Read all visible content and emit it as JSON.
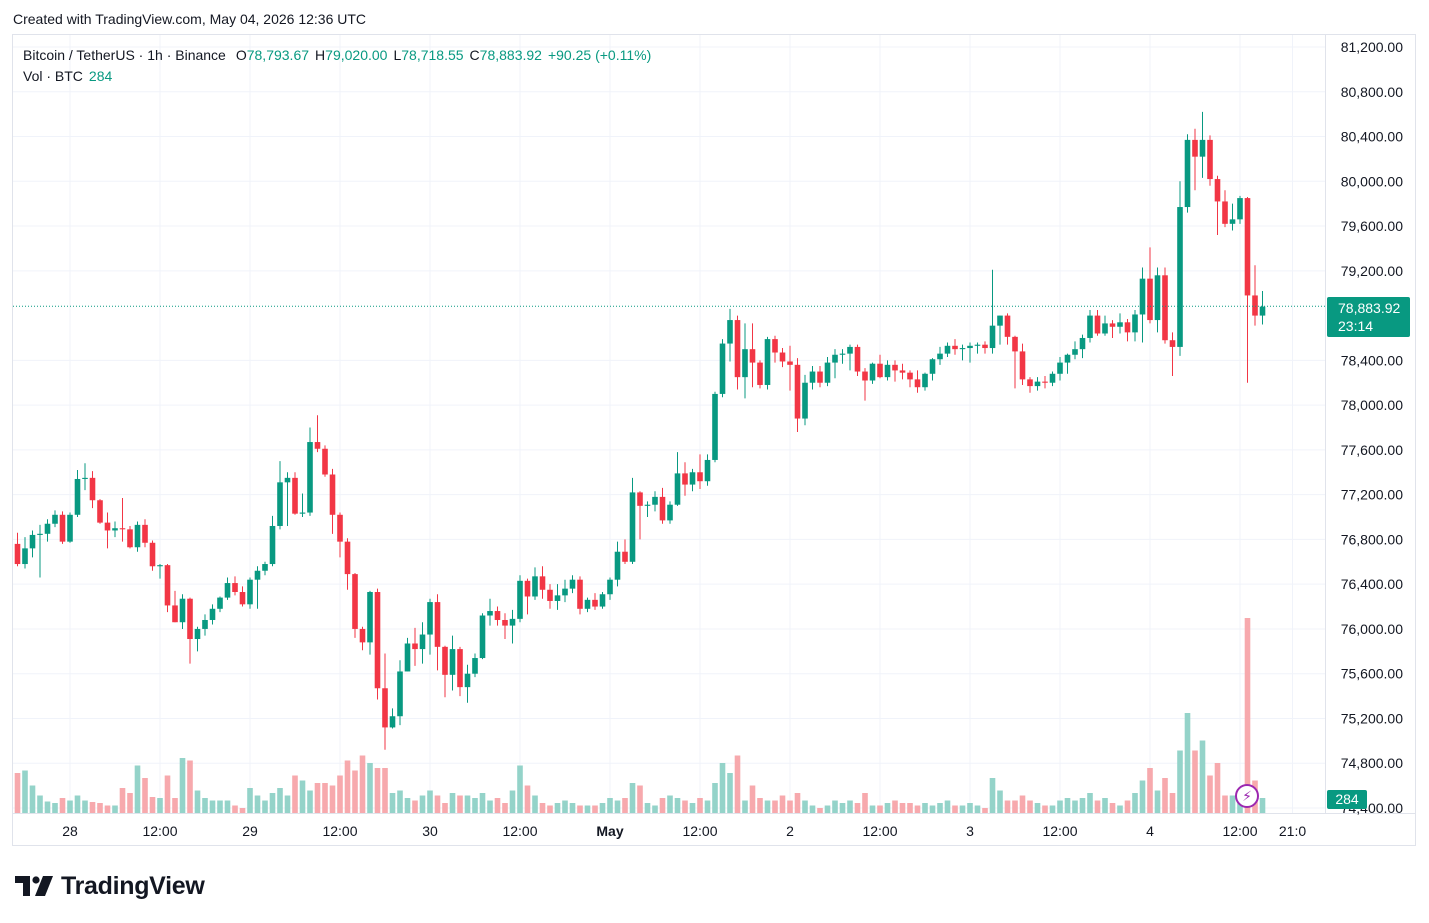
{
  "header": {
    "created_text": "Created with TradingView.com, May 04, 2026 12:36 UTC"
  },
  "legend": {
    "symbol": "Bitcoin / TetherUS · 1h · Binance",
    "open_label": "O",
    "open": "78,793.67",
    "high_label": "H",
    "high": "79,020.00",
    "low_label": "L",
    "low": "78,718.55",
    "close_label": "C",
    "close": "78,883.92",
    "change": "+90.25 (+0.11%)",
    "vol_label": "Vol · BTC",
    "vol": "284"
  },
  "price_tag": {
    "price": "78,883.92",
    "countdown": "23:14"
  },
  "volume_tag": "284",
  "logo": {
    "text": "TradingView"
  },
  "colors": {
    "up": "#089981",
    "down": "#f23645",
    "vol_up": "#94d3c9",
    "vol_down": "#f7a9ad",
    "grid": "#f0f3fa"
  },
  "chart_data": {
    "type": "candlestick",
    "symbol": "BTCUSDT",
    "interval": "1h",
    "ylim": [
      74400,
      81400
    ],
    "y_ticks": [
      "81,200.00",
      "80,800.00",
      "80,400.00",
      "80,000.00",
      "79,600.00",
      "79,200.00",
      "78,400.00",
      "78,000.00",
      "77,600.00",
      "77,200.00",
      "76,800.00",
      "76,400.00",
      "76,000.00",
      "75,600.00",
      "75,200.00",
      "74,800.00",
      "74,400.00"
    ],
    "x_ticks": [
      {
        "label": "28",
        "bold": false,
        "i": 7
      },
      {
        "label": "12:00",
        "bold": false,
        "i": 19
      },
      {
        "label": "29",
        "bold": false,
        "i": 31
      },
      {
        "label": "12:00",
        "bold": false,
        "i": 43
      },
      {
        "label": "30",
        "bold": false,
        "i": 55
      },
      {
        "label": "12:00",
        "bold": false,
        "i": 67
      },
      {
        "label": "May",
        "bold": true,
        "i": 79
      },
      {
        "label": "12:00",
        "bold": false,
        "i": 91
      },
      {
        "label": "2",
        "bold": false,
        "i": 103
      },
      {
        "label": "12:00",
        "bold": false,
        "i": 115
      },
      {
        "label": "3",
        "bold": false,
        "i": 127
      },
      {
        "label": "12:00",
        "bold": false,
        "i": 139
      },
      {
        "label": "4",
        "bold": false,
        "i": 151
      },
      {
        "label": "12:00",
        "bold": false,
        "i": 163
      },
      {
        "label": "21:0",
        "bold": false,
        "i": 170
      }
    ],
    "last_price": 78883.92,
    "candles": [
      [
        76760,
        76860,
        76560,
        76580,
        800
      ],
      [
        76580,
        76820,
        76540,
        76720,
        850
      ],
      [
        76720,
        76880,
        76640,
        76840,
        550
      ],
      [
        76840,
        76930,
        76460,
        76850,
        350
      ],
      [
        76850,
        76980,
        76780,
        76940,
        230
      ],
      [
        76940,
        77060,
        76910,
        77020,
        200
      ],
      [
        77020,
        77050,
        76760,
        76780,
        300
      ],
      [
        76780,
        77040,
        76770,
        77020,
        250
      ],
      [
        77020,
        77420,
        77000,
        77340,
        350
      ],
      [
        77340,
        77480,
        77240,
        77350,
        250
      ],
      [
        77350,
        77410,
        77080,
        77150,
        220
      ],
      [
        77150,
        77160,
        76940,
        76950,
        200
      ],
      [
        76950,
        77040,
        76720,
        76880,
        150
      ],
      [
        76880,
        76960,
        76820,
        76900,
        150
      ],
      [
        76900,
        77170,
        76780,
        76890,
        500
      ],
      [
        76890,
        76920,
        76720,
        76730,
        400
      ],
      [
        76730,
        76960,
        76690,
        76930,
        950
      ],
      [
        76930,
        76980,
        76730,
        76770,
        700
      ],
      [
        76770,
        76790,
        76520,
        76560,
        320
      ],
      [
        76560,
        76580,
        76450,
        76570,
        300
      ],
      [
        76570,
        76580,
        76150,
        76210,
        750
      ],
      [
        76210,
        76340,
        76060,
        76060,
        300
      ],
      [
        76060,
        76310,
        76000,
        76270,
        1100
      ],
      [
        76270,
        76280,
        75690,
        75910,
        1050
      ],
      [
        75910,
        76020,
        75800,
        76000,
        450
      ],
      [
        76000,
        76130,
        75940,
        76080,
        300
      ],
      [
        76080,
        76220,
        76040,
        76180,
        250
      ],
      [
        76180,
        76290,
        76150,
        76280,
        250
      ],
      [
        76280,
        76460,
        76260,
        76410,
        250
      ],
      [
        76410,
        76470,
        76300,
        76330,
        150
      ],
      [
        76330,
        76380,
        76200,
        76220,
        100
      ],
      [
        76220,
        76460,
        76180,
        76440,
        500
      ],
      [
        76440,
        76560,
        76180,
        76520,
        350
      ],
      [
        76520,
        76600,
        76480,
        76580,
        250
      ],
      [
        76580,
        77010,
        76560,
        76920,
        400
      ],
      [
        76920,
        77500,
        76890,
        77310,
        500
      ],
      [
        77310,
        77400,
        76920,
        77350,
        350
      ],
      [
        77350,
        77400,
        77020,
        77030,
        750
      ],
      [
        77030,
        77210,
        77000,
        77040,
        650
      ],
      [
        77040,
        77800,
        77010,
        77670,
        450
      ],
      [
        77670,
        77910,
        77580,
        77610,
        600
      ],
      [
        77610,
        77640,
        77360,
        77380,
        600
      ],
      [
        77380,
        77430,
        76850,
        77020,
        550
      ],
      [
        77020,
        77040,
        76640,
        76780,
        750
      ],
      [
        76780,
        76810,
        76350,
        76490,
        1050
      ],
      [
        76490,
        76500,
        75920,
        76000,
        850
      ],
      [
        76000,
        76020,
        75810,
        75880,
        1150
      ],
      [
        75880,
        76340,
        75770,
        76330,
        1000
      ],
      [
        76330,
        76360,
        75370,
        75470,
        900
      ],
      [
        75470,
        75780,
        74920,
        75120,
        900
      ],
      [
        75120,
        75290,
        75110,
        75220,
        400
      ],
      [
        75220,
        75720,
        75140,
        75620,
        450
      ],
      [
        75620,
        75920,
        75620,
        75870,
        300
      ],
      [
        75870,
        76010,
        75670,
        75820,
        250
      ],
      [
        75820,
        76060,
        75690,
        75950,
        350
      ],
      [
        75950,
        76270,
        75770,
        76240,
        450
      ],
      [
        76240,
        76310,
        75630,
        75840,
        350
      ],
      [
        75840,
        75850,
        75390,
        75590,
        200
      ],
      [
        75590,
        75940,
        75450,
        75820,
        400
      ],
      [
        75820,
        75840,
        75400,
        75480,
        350
      ],
      [
        75480,
        75680,
        75340,
        75600,
        350
      ],
      [
        75600,
        75780,
        75570,
        75740,
        300
      ],
      [
        75740,
        76140,
        75730,
        76120,
        400
      ],
      [
        76120,
        76270,
        76030,
        76160,
        250
      ],
      [
        76160,
        76200,
        76030,
        76080,
        300
      ],
      [
        76080,
        76140,
        75910,
        76030,
        200
      ],
      [
        76030,
        76170,
        75870,
        76090,
        450
      ],
      [
        76090,
        76480,
        76060,
        76430,
        950
      ],
      [
        76430,
        76450,
        76130,
        76290,
        550
      ],
      [
        76290,
        76550,
        76260,
        76470,
        350
      ],
      [
        76470,
        76560,
        76270,
        76350,
        200
      ],
      [
        76350,
        76400,
        76180,
        76250,
        150
      ],
      [
        76250,
        76400,
        76170,
        76300,
        200
      ],
      [
        76300,
        76440,
        76240,
        76360,
        250
      ],
      [
        76360,
        76480,
        76320,
        76440,
        200
      ],
      [
        76440,
        76470,
        76130,
        76180,
        150
      ],
      [
        76180,
        76280,
        76150,
        76260,
        150
      ],
      [
        76260,
        76320,
        76170,
        76200,
        150
      ],
      [
        76200,
        76330,
        76180,
        76310,
        200
      ],
      [
        76310,
        76460,
        76260,
        76440,
        300
      ],
      [
        76440,
        76780,
        76380,
        76690,
        250
      ],
      [
        76690,
        76800,
        76580,
        76600,
        300
      ],
      [
        76600,
        77350,
        76580,
        77220,
        600
      ],
      [
        77220,
        77230,
        76800,
        77100,
        550
      ],
      [
        77100,
        77140,
        77000,
        77110,
        200
      ],
      [
        77110,
        77230,
        77050,
        77180,
        150
      ],
      [
        77180,
        77260,
        76940,
        76970,
        300
      ],
      [
        76970,
        77140,
        76940,
        77110,
        350
      ],
      [
        77110,
        77580,
        77100,
        77390,
        300
      ],
      [
        77390,
        77490,
        77190,
        77290,
        250
      ],
      [
        77290,
        77430,
        77230,
        77400,
        200
      ],
      [
        77400,
        77560,
        77250,
        77320,
        300
      ],
      [
        77320,
        77560,
        77280,
        77510,
        250
      ],
      [
        77510,
        78120,
        77490,
        78100,
        600
      ],
      [
        78100,
        78590,
        78070,
        78550,
        1000
      ],
      [
        78550,
        78860,
        78390,
        78760,
        800
      ],
      [
        78760,
        78800,
        78140,
        78250,
        1150
      ],
      [
        78250,
        78730,
        78060,
        78500,
        250
      ],
      [
        78500,
        78730,
        78160,
        78380,
        550
      ],
      [
        78380,
        78400,
        78150,
        78180,
        300
      ],
      [
        78180,
        78610,
        78140,
        78590,
        250
      ],
      [
        78590,
        78620,
        78380,
        78470,
        250
      ],
      [
        78470,
        78510,
        78340,
        78390,
        350
      ],
      [
        78390,
        78530,
        78130,
        78360,
        250
      ],
      [
        78360,
        78420,
        77760,
        77880,
        400
      ],
      [
        77880,
        78270,
        77820,
        78200,
        250
      ],
      [
        78200,
        78350,
        78140,
        78300,
        150
      ],
      [
        78300,
        78350,
        78160,
        78200,
        100
      ],
      [
        78200,
        78430,
        78170,
        78380,
        150
      ],
      [
        78380,
        78500,
        78240,
        78450,
        250
      ],
      [
        78450,
        78500,
        78370,
        78460,
        200
      ],
      [
        78460,
        78540,
        78310,
        78520,
        250
      ],
      [
        78520,
        78540,
        78260,
        78300,
        200
      ],
      [
        78300,
        78330,
        78040,
        78220,
        400
      ],
      [
        78220,
        78380,
        78190,
        78370,
        150
      ],
      [
        78370,
        78450,
        78240,
        78250,
        150
      ],
      [
        78250,
        78400,
        78220,
        78360,
        200
      ],
      [
        78360,
        78400,
        78210,
        78310,
        250
      ],
      [
        78310,
        78370,
        78230,
        78290,
        200
      ],
      [
        78290,
        78310,
        78160,
        78230,
        200
      ],
      [
        78230,
        78310,
        78110,
        78160,
        150
      ],
      [
        78160,
        78290,
        78130,
        78280,
        200
      ],
      [
        78280,
        78420,
        78220,
        78410,
        150
      ],
      [
        78410,
        78520,
        78360,
        78460,
        200
      ],
      [
        78460,
        78560,
        78430,
        78530,
        250
      ],
      [
        78530,
        78590,
        78450,
        78500,
        150
      ],
      [
        78500,
        78540,
        78400,
        78510,
        150
      ],
      [
        78510,
        78560,
        78380,
        78530,
        200
      ],
      [
        78530,
        78560,
        78460,
        78540,
        150
      ],
      [
        78540,
        78570,
        78460,
        78510,
        100
      ],
      [
        78510,
        79210,
        78460,
        78710,
        700
      ],
      [
        78710,
        78800,
        78540,
        78800,
        450
      ],
      [
        78800,
        78820,
        78540,
        78610,
        250
      ],
      [
        78610,
        78620,
        78150,
        78480,
        250
      ],
      [
        78480,
        78550,
        78180,
        78230,
        350
      ],
      [
        78230,
        78250,
        78110,
        78170,
        250
      ],
      [
        78170,
        78250,
        78130,
        78210,
        200
      ],
      [
        78210,
        78260,
        78150,
        78200,
        150
      ],
      [
        78200,
        78300,
        78170,
        78280,
        150
      ],
      [
        78280,
        78430,
        78220,
        78380,
        250
      ],
      [
        78380,
        78460,
        78280,
        78450,
        300
      ],
      [
        78450,
        78570,
        78410,
        78500,
        250
      ],
      [
        78500,
        78630,
        78420,
        78600,
        300
      ],
      [
        78600,
        78850,
        78560,
        78800,
        400
      ],
      [
        78800,
        78850,
        78620,
        78640,
        250
      ],
      [
        78640,
        78800,
        78620,
        78730,
        300
      ],
      [
        78730,
        78760,
        78600,
        78700,
        200
      ],
      [
        78700,
        78820,
        78640,
        78740,
        150
      ],
      [
        78740,
        78770,
        78570,
        78650,
        250
      ],
      [
        78650,
        78850,
        78570,
        78810,
        400
      ],
      [
        78810,
        79230,
        78560,
        79130,
        650
      ],
      [
        79130,
        79410,
        78730,
        78760,
        900
      ],
      [
        78760,
        79230,
        78650,
        79160,
        450
      ],
      [
        79160,
        79230,
        78550,
        78580,
        700
      ],
      [
        78580,
        78650,
        78260,
        78520,
        400
      ],
      [
        78520,
        80000,
        78440,
        79770,
        1250
      ],
      [
        79770,
        80420,
        79720,
        80370,
        2000
      ],
      [
        80370,
        80470,
        79920,
        80220,
        1250
      ],
      [
        80220,
        80620,
        80030,
        80370,
        1450
      ],
      [
        80370,
        80410,
        79960,
        80020,
        750
      ],
      [
        80020,
        80050,
        79520,
        79820,
        1000
      ],
      [
        79820,
        79920,
        79590,
        79620,
        350
      ],
      [
        79620,
        79800,
        79560,
        79660,
        350
      ],
      [
        79660,
        79870,
        79620,
        79850,
        400
      ],
      [
        79850,
        79860,
        78200,
        78980,
        3900
      ],
      [
        78980,
        79250,
        78710,
        78800,
        650
      ],
      [
        78800,
        79020,
        78720,
        78880,
        300
      ]
    ]
  }
}
